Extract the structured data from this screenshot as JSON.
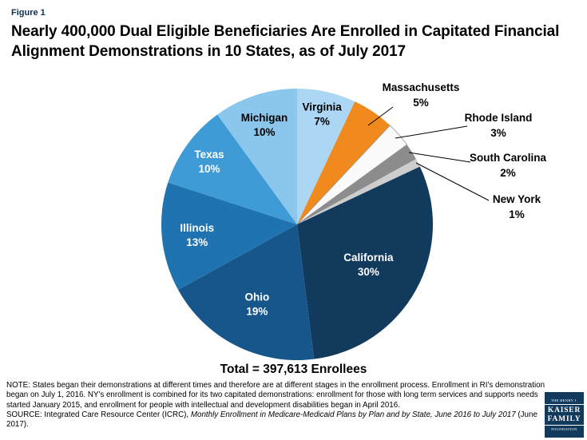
{
  "figure_label": "Figure 1",
  "title": "Nearly 400,000 Dual Eligible Beneficiaries Are Enrolled in Capitated Financial Alignment Demonstrations in 10 States, as of July 2017",
  "total_label": "Total = 397,613 Enrollees",
  "chart_data": {
    "type": "pie",
    "title": "Nearly 400,000 Dual Eligible Beneficiaries Are Enrolled in Capitated Financial Alignment Demonstrations in 10 States, as of July 2017",
    "total_annotation": "Total = 397,613 Enrollees",
    "start_angle_deg": -90,
    "direction": "clockwise",
    "legend": "none",
    "center": [
      372,
      181
    ],
    "radius": 170,
    "slices": [
      {
        "label": "Virginia",
        "value": 7,
        "display": "7%",
        "color": "#ACD7F4",
        "text_color": "#000000",
        "placement": "inside",
        "label_r": 0.84
      },
      {
        "label": "Massachusetts",
        "value": 5,
        "display": "5%",
        "color": "#F08A1D",
        "text_color": "#000000",
        "placement": "outside",
        "label_xy": [
          527,
          14
        ],
        "leader": [
          [
            492,
            34
          ],
          [
            461,
            57
          ]
        ]
      },
      {
        "label": "Rhode Island",
        "value": 3,
        "display": "3%",
        "color": "#FAFAFA",
        "stroke": "#999999",
        "text_color": "#000000",
        "placement": "outside",
        "label_xy": [
          624,
          52
        ],
        "leader": [
          [
            585,
            58
          ],
          [
            495,
            73
          ]
        ]
      },
      {
        "label": "South Carolina",
        "value": 2,
        "display": "2%",
        "color": "#8C8C8C",
        "text_color": "#000000",
        "placement": "outside",
        "label_xy": [
          636,
          102
        ],
        "leader": [
          [
            589,
            103
          ],
          [
            512,
            91
          ]
        ]
      },
      {
        "label": "New York",
        "value": 1,
        "display": "1%",
        "color": "#CDCDCD",
        "text_color": "#000000",
        "placement": "outside",
        "label_xy": [
          647,
          154
        ],
        "leader": [
          [
            612,
            151
          ],
          [
            521,
            104
          ]
        ]
      },
      {
        "label": "California",
        "value": 30,
        "display": "30%",
        "color": "#123A5C",
        "text_color": "#FFFFFF",
        "placement": "inside",
        "label_r": 0.6
      },
      {
        "label": "Ohio",
        "value": 19,
        "display": "19%",
        "color": "#16568A",
        "text_color": "#FFFFFF",
        "placement": "inside",
        "label_r": 0.65
      },
      {
        "label": "Illinois",
        "value": 13,
        "display": "13%",
        "color": "#1E73B0",
        "text_color": "#FFFFFF",
        "placement": "inside",
        "label_r": 0.74
      },
      {
        "label": "Texas",
        "value": 10,
        "display": "10%",
        "color": "#3F9BD6",
        "text_color": "#FFFFFF",
        "placement": "inside",
        "label_r": 0.8
      },
      {
        "label": "Michigan",
        "value": 10,
        "display": "10%",
        "color": "#8BC7EC",
        "text_color": "#000000",
        "placement": "inside",
        "label_r": 0.78
      }
    ]
  },
  "note": {
    "note_text": "NOTE: States began their demonstrations at different times and therefore are at different stages in the enrollment process. Enrollment in RI's demonstration began on July 1, 2016.  NY's enrollment is combined for its two capitated demonstrations: enrollment for those with long term services and supports needs started January 2015, and enrollment for people with intellectual and development disabilities began in April 2016.",
    "source_prefix": "SOURCE: Integrated Care Resource Center (ICRC), ",
    "source_italic": "Monthly Enrollment in Medicare-Medicaid Plans by Plan and by State, June 2016 to July 2017",
    "source_suffix": " (June 2017)."
  },
  "logo": {
    "line1": "THE HENRY J.",
    "line2": "KAISER",
    "line3": "FAMILY",
    "line4": "FOUNDATION"
  }
}
